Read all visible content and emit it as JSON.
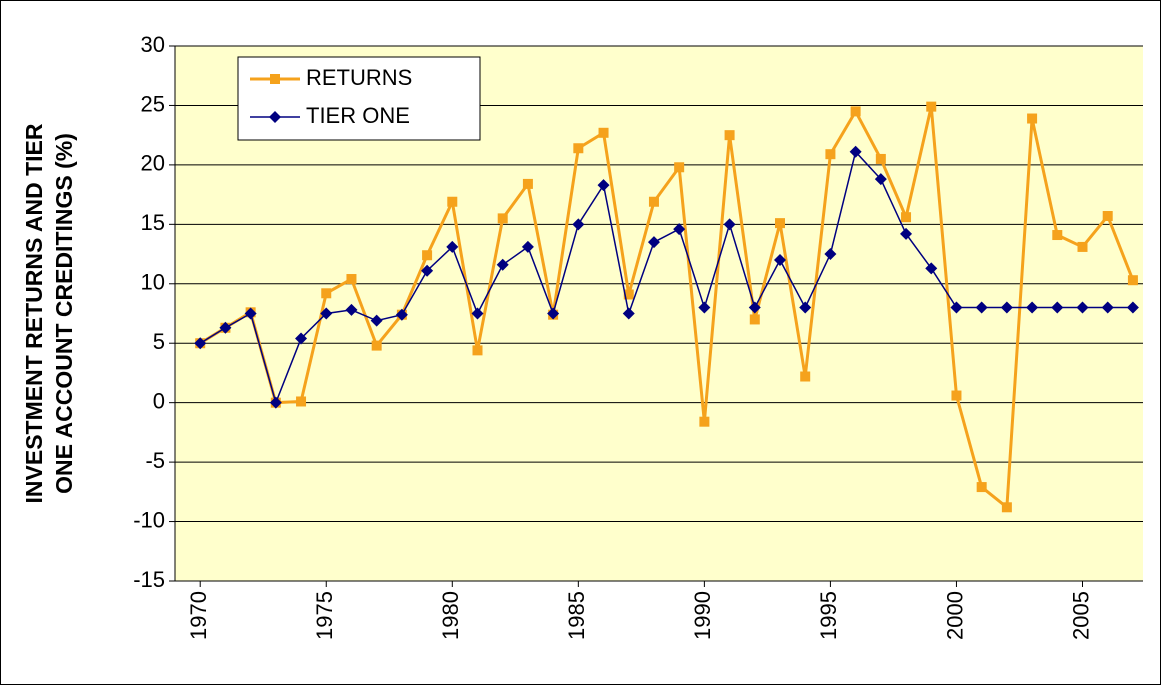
{
  "chart_data": {
    "type": "line",
    "ylabel": [
      "INVESTMENT RETURNS AND TIER",
      "ONE ACCOUNT CREDITINGS (%)"
    ],
    "x": [
      1970,
      1971,
      1972,
      1973,
      1974,
      1975,
      1976,
      1977,
      1978,
      1979,
      1980,
      1981,
      1982,
      1983,
      1984,
      1985,
      1986,
      1987,
      1988,
      1989,
      1990,
      1991,
      1992,
      1993,
      1994,
      1995,
      1996,
      1997,
      1998,
      1999,
      2000,
      2001,
      2002,
      2003,
      2004,
      2005,
      2006,
      2007
    ],
    "series": [
      {
        "name": "RETURNS",
        "color": "#f5a21c",
        "marker": "square",
        "values": [
          5.0,
          6.3,
          7.6,
          0,
          0.1,
          9.2,
          10.4,
          4.8,
          7.4,
          12.4,
          16.9,
          4.4,
          15.5,
          18.4,
          7.4,
          21.4,
          22.7,
          9.1,
          16.9,
          19.8,
          -1.6,
          22.5,
          7.0,
          15.1,
          2.2,
          20.9,
          24.5,
          20.5,
          15.6,
          24.9,
          0.6,
          -7.1,
          -8.8,
          23.9,
          14.1,
          13.1,
          15.7,
          10.3
        ]
      },
      {
        "name": "TIER ONE",
        "color": "#000080",
        "marker": "diamond",
        "values": [
          5.0,
          6.3,
          7.5,
          0,
          5.4,
          7.5,
          7.8,
          6.9,
          7.4,
          11.1,
          13.1,
          7.5,
          11.6,
          13.1,
          7.5,
          15.0,
          18.3,
          7.5,
          13.5,
          14.6,
          8.0,
          15.0,
          8.0,
          12.0,
          8.0,
          12.5,
          21.1,
          18.8,
          14.2,
          11.3,
          8.0,
          8.0,
          8.0,
          8.0,
          8.0,
          8.0,
          8.0,
          8.0
        ]
      }
    ],
    "xlim": [
      1969,
      2007.4
    ],
    "xticks": [
      1970,
      1975,
      1980,
      1985,
      1990,
      1995,
      2000,
      2005
    ],
    "ylim": [
      -15,
      30
    ],
    "yticks": [
      -15,
      -10,
      -5,
      0,
      5,
      10,
      15,
      20,
      25,
      30
    ],
    "grid": true,
    "legend": "upper left",
    "plot_background": "#ffffcc"
  }
}
